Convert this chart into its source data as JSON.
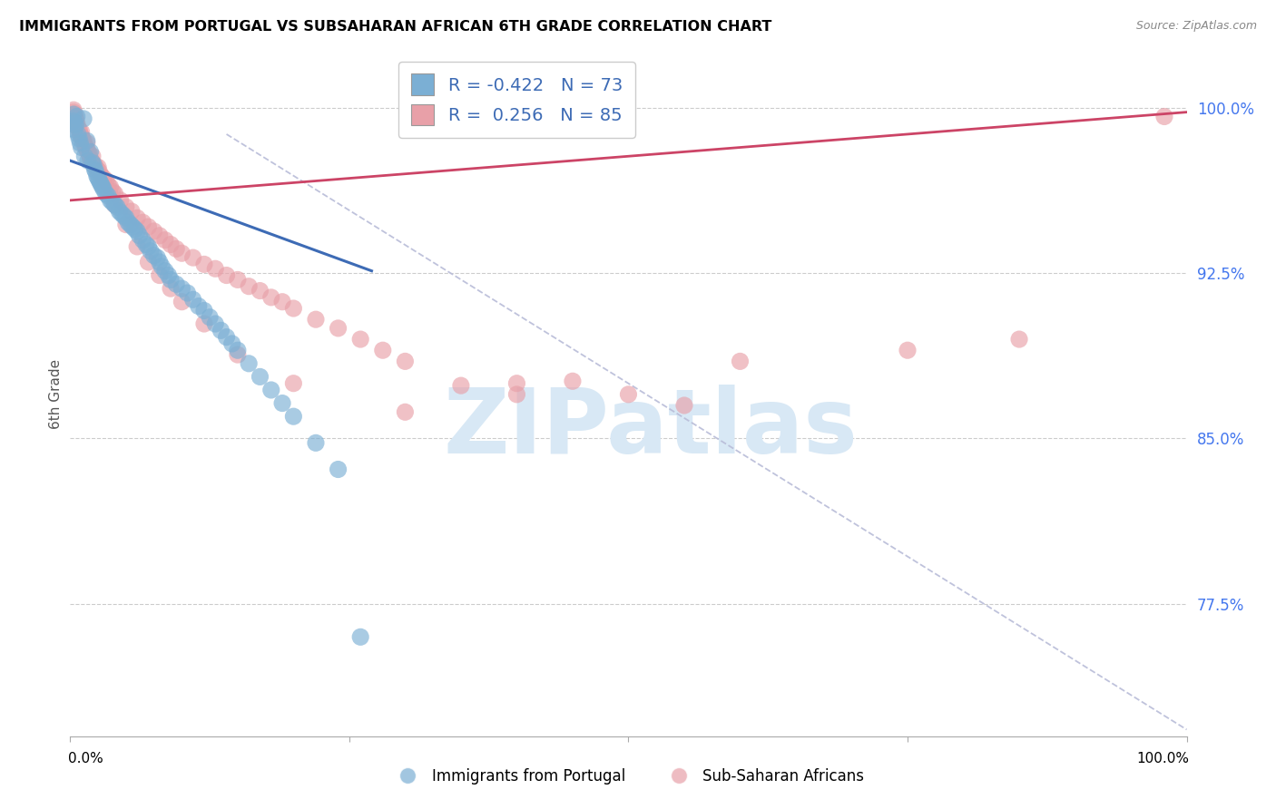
{
  "title": "IMMIGRANTS FROM PORTUGAL VS SUBSAHARAN AFRICAN 6TH GRADE CORRELATION CHART",
  "source": "Source: ZipAtlas.com",
  "ylabel": "6th Grade",
  "ytick_labels": [
    "100.0%",
    "92.5%",
    "85.0%",
    "77.5%"
  ],
  "ytick_vals": [
    1.0,
    0.925,
    0.85,
    0.775
  ],
  "xlim": [
    0.0,
    1.0
  ],
  "ylim": [
    0.715,
    1.025
  ],
  "blue_R": -0.422,
  "blue_N": 73,
  "pink_R": 0.256,
  "pink_N": 85,
  "blue_fill": "#7bafd4",
  "pink_fill": "#e8a0a8",
  "blue_line": "#3d6bb5",
  "pink_line": "#cc4466",
  "dash_color": "#b8bcd8",
  "watermark_text": "ZIPatlas",
  "watermark_color": "#d8e8f5",
  "legend1_label_blue": "Immigrants from Portugal",
  "legend1_label_pink": "Sub-Saharan Africans",
  "grid_color": "#cccccc",
  "right_tick_color": "#4477ee",
  "title_fontsize": 11.5,
  "source_fontsize": 9,
  "blue_x": [
    0.003,
    0.004,
    0.005,
    0.006,
    0.007,
    0.008,
    0.009,
    0.01,
    0.012,
    0.013,
    0.015,
    0.016,
    0.018,
    0.02,
    0.021,
    0.022,
    0.023,
    0.024,
    0.025,
    0.026,
    0.027,
    0.028,
    0.029,
    0.03,
    0.032,
    0.034,
    0.036,
    0.038,
    0.04,
    0.042,
    0.044,
    0.046,
    0.048,
    0.05,
    0.052,
    0.054,
    0.056,
    0.058,
    0.06,
    0.062,
    0.065,
    0.068,
    0.07,
    0.072,
    0.075,
    0.078,
    0.08,
    0.082,
    0.085,
    0.088,
    0.09,
    0.095,
    0.1,
    0.105,
    0.11,
    0.115,
    0.12,
    0.125,
    0.13,
    0.135,
    0.14,
    0.145,
    0.15,
    0.16,
    0.17,
    0.18,
    0.19,
    0.2,
    0.22,
    0.24,
    0.26,
    0.003,
    0.004
  ],
  "blue_y": [
    0.994,
    0.99,
    0.992,
    0.996,
    0.988,
    0.986,
    0.984,
    0.982,
    0.995,
    0.978,
    0.985,
    0.976,
    0.98,
    0.975,
    0.974,
    0.972,
    0.971,
    0.969,
    0.968,
    0.967,
    0.966,
    0.965,
    0.964,
    0.963,
    0.961,
    0.96,
    0.958,
    0.957,
    0.956,
    0.955,
    0.953,
    0.952,
    0.951,
    0.95,
    0.948,
    0.947,
    0.946,
    0.945,
    0.944,
    0.942,
    0.94,
    0.938,
    0.937,
    0.935,
    0.933,
    0.932,
    0.93,
    0.928,
    0.926,
    0.924,
    0.922,
    0.92,
    0.918,
    0.916,
    0.913,
    0.91,
    0.908,
    0.905,
    0.902,
    0.899,
    0.896,
    0.893,
    0.89,
    0.884,
    0.878,
    0.872,
    0.866,
    0.86,
    0.848,
    0.836,
    0.76,
    0.997,
    0.993
  ],
  "pink_x": [
    0.003,
    0.004,
    0.005,
    0.006,
    0.007,
    0.008,
    0.009,
    0.01,
    0.011,
    0.012,
    0.013,
    0.014,
    0.015,
    0.016,
    0.017,
    0.018,
    0.019,
    0.02,
    0.022,
    0.024,
    0.026,
    0.028,
    0.03,
    0.032,
    0.034,
    0.036,
    0.038,
    0.04,
    0.045,
    0.05,
    0.055,
    0.06,
    0.065,
    0.07,
    0.075,
    0.08,
    0.085,
    0.09,
    0.095,
    0.1,
    0.11,
    0.12,
    0.13,
    0.14,
    0.15,
    0.16,
    0.17,
    0.18,
    0.19,
    0.2,
    0.22,
    0.24,
    0.26,
    0.28,
    0.3,
    0.35,
    0.4,
    0.45,
    0.5,
    0.55,
    0.003,
    0.004,
    0.005,
    0.01,
    0.015,
    0.02,
    0.025,
    0.03,
    0.035,
    0.04,
    0.05,
    0.06,
    0.07,
    0.08,
    0.09,
    0.1,
    0.12,
    0.15,
    0.2,
    0.3,
    0.4,
    0.6,
    0.75,
    0.85,
    0.98
  ],
  "pink_y": [
    0.998,
    0.996,
    0.994,
    0.993,
    0.991,
    0.99,
    0.988,
    0.987,
    0.986,
    0.985,
    0.983,
    0.982,
    0.981,
    0.98,
    0.979,
    0.977,
    0.976,
    0.975,
    0.974,
    0.972,
    0.971,
    0.969,
    0.968,
    0.967,
    0.965,
    0.964,
    0.962,
    0.961,
    0.958,
    0.955,
    0.953,
    0.95,
    0.948,
    0.946,
    0.944,
    0.942,
    0.94,
    0.938,
    0.936,
    0.934,
    0.932,
    0.929,
    0.927,
    0.924,
    0.922,
    0.919,
    0.917,
    0.914,
    0.912,
    0.909,
    0.904,
    0.9,
    0.895,
    0.89,
    0.885,
    0.874,
    0.875,
    0.876,
    0.87,
    0.865,
    0.999,
    0.997,
    0.995,
    0.989,
    0.984,
    0.978,
    0.973,
    0.967,
    0.962,
    0.956,
    0.947,
    0.937,
    0.93,
    0.924,
    0.918,
    0.912,
    0.902,
    0.888,
    0.875,
    0.862,
    0.87,
    0.885,
    0.89,
    0.895,
    0.996
  ]
}
